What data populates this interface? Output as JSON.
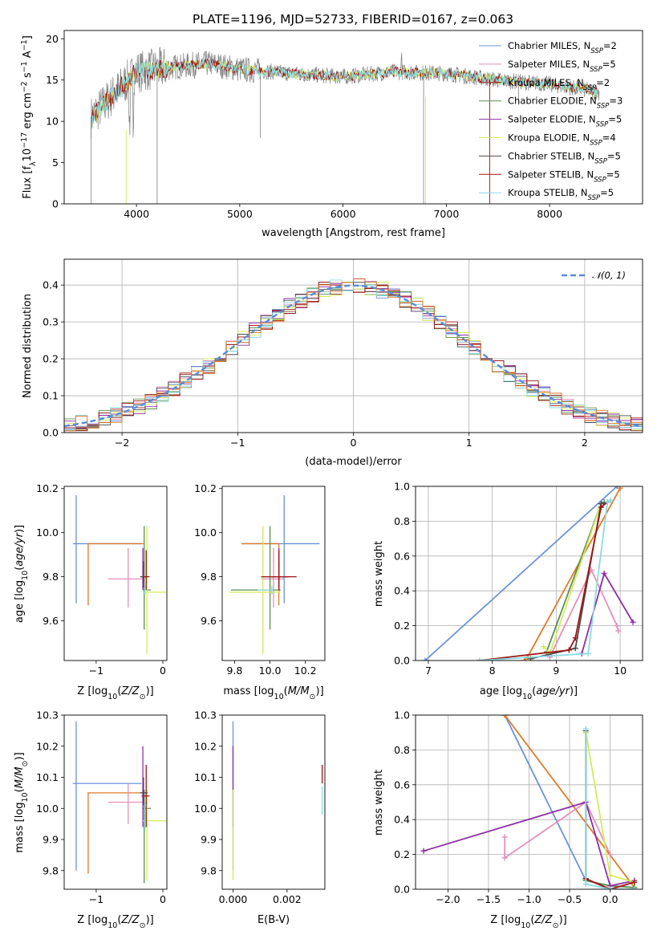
{
  "title": "PLATE=1196, MJD=52733, FIBERID=0167, z=0.063",
  "colors": {
    "Chabrier MILES": "#6b93d6",
    "Salpeter MILES": "#e58fba",
    "Kroupa MILES": "#8a1f12",
    "Chabrier ELODIE": "#5a8f4e",
    "Salpeter ELODIE": "#8e2ea5",
    "Kroupa ELODIE": "#d4ea5a",
    "Chabrier STELIB": "#4a4a4a",
    "Salpeter STELIB": "#a01515",
    "Kroupa STELIB": "#8adbe3",
    "data_gray": "#808080",
    "orange": "#df7a28",
    "gauss": "#5b8bd5"
  },
  "legend": [
    {
      "label": "Chabrier MILES, N",
      "sub": "SSP",
      "eq": "=2",
      "color": "#6b93d6"
    },
    {
      "label": "Salpeter MILES, N",
      "sub": "SSP",
      "eq": "=5",
      "color": "#e58fba"
    },
    {
      "label": "Kroupa MILES, N",
      "sub": "SSP",
      "eq": "=2",
      "color": "#8a1f12"
    },
    {
      "label": "Chabrier ELODIE, N",
      "sub": "SSP",
      "eq": "=3",
      "color": "#5a8f4e"
    },
    {
      "label": "Salpeter ELODIE, N",
      "sub": "SSP",
      "eq": "=5",
      "color": "#8e2ea5"
    },
    {
      "label": "Kroupa ELODIE, N",
      "sub": "SSP",
      "eq": "=4",
      "color": "#d4ea5a"
    },
    {
      "label": "Chabrier STELIB, N",
      "sub": "SSP",
      "eq": "=5",
      "color": "#4a4a4a"
    },
    {
      "label": "Salpeter STELIB, N",
      "sub": "SSP",
      "eq": "=5",
      "color": "#a01515"
    },
    {
      "label": "Kroupa STELIB, N",
      "sub": "SSP",
      "eq": "=5",
      "color": "#8adbe3"
    }
  ],
  "chart_data": [
    {
      "type": "line",
      "title": "PLATE=1196, MJD=52733, FIBERID=0167, z=0.063",
      "xlabel": "wavelength [Angstrom, rest frame]",
      "ylabel": "Flux [fλ10⁻¹⁷ erg cm⁻² s⁻¹ A⁻¹]",
      "xlim": [
        3300,
        8900
      ],
      "ylim": [
        0,
        21
      ],
      "xticks": [
        "4000",
        "5000",
        "6000",
        "7000",
        "8000"
      ],
      "yticks": [
        "0",
        "5",
        "10",
        "15",
        "20"
      ],
      "continuum": {
        "x": [
          3560,
          3800,
          4000,
          4300,
          4700,
          5000,
          5500,
          6000,
          6500,
          7000,
          7500,
          8000,
          8500
        ],
        "y": [
          10.5,
          13.5,
          16.0,
          16.5,
          17.0,
          16.3,
          15.8,
          15.4,
          16.0,
          15.8,
          15.0,
          14.5,
          13.5
        ]
      },
      "grid": false,
      "legend": "upper-right"
    },
    {
      "type": "bar",
      "subtype": "step-histogram",
      "xlabel": "(data-model)/error",
      "ylabel": "Normed distribution",
      "xlim": [
        -2.5,
        2.5
      ],
      "ylim": [
        0,
        0.47
      ],
      "xticks": [
        "−2",
        "−1",
        "0",
        "1",
        "2"
      ],
      "yticks": [
        "0.0",
        "0.1",
        "0.2",
        "0.3",
        "0.4"
      ],
      "legend_label": "𝒩(0, 1)",
      "grid": true,
      "legend": "upper-right"
    },
    {
      "type": "scatter",
      "subtype": "errorbar",
      "xlabel": "Z [log10(Z/Z⊙)]",
      "ylabel": "age [log10(age/yr)]",
      "xlim": [
        -1.48,
        0.06
      ],
      "ylim": [
        9.42,
        10.21
      ],
      "xticks": [
        "−1",
        "0"
      ],
      "yticks": [
        "9.6",
        "9.8",
        "10.0",
        "10.2"
      ],
      "points": [
        {
          "x": -1.3,
          "y": 9.95,
          "xerr": [
            0.05,
            0.98
          ],
          "yerr": [
            0.27,
            0.22
          ],
          "color": "#6b93d6"
        },
        {
          "x": -1.12,
          "y": 9.95,
          "xerr": [
            0.01,
            0.83
          ],
          "yerr": [
            0.28,
            0.0
          ],
          "color": "#df7a28"
        },
        {
          "x": -0.52,
          "y": 9.79,
          "xerr": [
            0.3,
            0.22
          ],
          "yerr": [
            0.13,
            0.14
          ],
          "color": "#e58fba"
        },
        {
          "x": -0.28,
          "y": 9.74,
          "xerr": [
            0.02,
            0.1
          ],
          "yerr": [
            0.18,
            0.29
          ],
          "color": "#5a8f4e"
        },
        {
          "x": -0.3,
          "y": 9.8,
          "xerr": [
            0.02,
            0.03
          ],
          "yerr": [
            0.06,
            0.13
          ],
          "color": "#8e2ea5"
        },
        {
          "x": -0.24,
          "y": 9.73,
          "xerr": [
            0.06,
            0.3
          ],
          "yerr": [
            0.28,
            0.3
          ],
          "color": "#d4ea5a"
        },
        {
          "x": -0.29,
          "y": 9.8,
          "xerr": [
            0.05,
            0.06
          ],
          "yerr": [
            0.05,
            0.07
          ],
          "color": "#4a4a4a"
        },
        {
          "x": -0.25,
          "y": 9.8,
          "xerr": [
            0.04,
            0.05
          ],
          "yerr": [
            0.06,
            0.12
          ],
          "color": "#a01515"
        },
        {
          "x": -0.27,
          "y": 9.74,
          "xerr": [
            0.01,
            0.02
          ],
          "yerr": [
            0.02,
            0.02
          ],
          "color": "#8adbe3"
        }
      ]
    },
    {
      "type": "scatter",
      "subtype": "errorbar",
      "xlabel": "mass [log10(M/M⊙)]",
      "xlim": [
        9.73,
        10.31
      ],
      "ylim": [
        9.42,
        10.21
      ],
      "xticks": [
        "9.8",
        "10.0",
        "10.2"
      ],
      "yticks": [
        "9.6",
        "9.8",
        "10.0",
        "10.2"
      ],
      "points": [
        {
          "x": 10.08,
          "y": 9.95,
          "xerr": [
            0.24,
            0.2
          ],
          "yerr": [
            0.27,
            0.22
          ],
          "color": "#6b93d6"
        },
        {
          "x": 10.05,
          "y": 9.95,
          "xerr": [
            0.21,
            0.0
          ],
          "yerr": [
            0.28,
            0.0
          ],
          "color": "#df7a28"
        },
        {
          "x": 10.02,
          "y": 9.79,
          "xerr": [
            0.07,
            0.06
          ],
          "yerr": [
            0.13,
            0.14
          ],
          "color": "#e58fba"
        },
        {
          "x": 10.0,
          "y": 9.74,
          "xerr": [
            0.22,
            0.06
          ],
          "yerr": [
            0.18,
            0.29
          ],
          "color": "#5a8f4e"
        },
        {
          "x": 10.05,
          "y": 9.8,
          "xerr": [
            0.1,
            0.06
          ],
          "yerr": [
            0.06,
            0.13
          ],
          "color": "#8e2ea5"
        },
        {
          "x": 9.96,
          "y": 9.73,
          "xerr": [
            0.19,
            0.1
          ],
          "yerr": [
            0.28,
            0.3
          ],
          "color": "#d4ea5a"
        },
        {
          "x": 10.05,
          "y": 9.8,
          "xerr": [
            0.04,
            0.05
          ],
          "yerr": [
            0.05,
            0.07
          ],
          "color": "#4a4a4a"
        },
        {
          "x": 10.05,
          "y": 9.8,
          "xerr": [
            0.1,
            0.1
          ],
          "yerr": [
            0.06,
            0.12
          ],
          "color": "#a01515"
        },
        {
          "x": 10.01,
          "y": 9.74,
          "xerr": [
            0.08,
            0.01
          ],
          "yerr": [
            0.02,
            0.02
          ],
          "color": "#8adbe3"
        }
      ]
    },
    {
      "type": "line",
      "xlabel": "age [log10(age/yr)]",
      "ylabel": "mass weight",
      "xlim": [
        6.8,
        10.35
      ],
      "ylim": [
        0,
        1
      ],
      "xticks": [
        "7",
        "8",
        "9",
        "10"
      ],
      "yticks": [
        "0.0",
        "0.2",
        "0.4",
        "0.6",
        "0.8",
        "1.0"
      ],
      "grid": true,
      "series": [
        {
          "color": "#6b93d6",
          "x": [
            6.95,
            9.95
          ],
          "y": [
            0.0,
            1.0
          ]
        },
        {
          "color": "#df7a28",
          "x": [
            8.5,
            8.55,
            10.0
          ],
          "y": [
            0.0,
            0.02,
            0.99
          ]
        },
        {
          "color": "#e58fba",
          "x": [
            8.9,
            9.55,
            9.95,
            9.97
          ],
          "y": [
            0.02,
            0.52,
            0.2,
            0.17
          ]
        },
        {
          "color": "#5a8f4e",
          "x": [
            8.85,
            9.7,
            9.75
          ],
          "y": [
            0.05,
            0.9,
            0.91
          ]
        },
        {
          "color": "#8e2ea5",
          "x": [
            9.4,
            9.75,
            10.2
          ],
          "y": [
            0.04,
            0.5,
            0.22
          ]
        },
        {
          "color": "#d4ea5a",
          "x": [
            8.8,
            8.9,
            9.7,
            9.8
          ],
          "y": [
            0.08,
            0.04,
            0.9,
            0.91
          ]
        },
        {
          "color": "#4a4a4a",
          "x": [
            8.6,
            9.3,
            9.7,
            9.8
          ],
          "y": [
            0.01,
            0.07,
            0.9,
            0.91
          ]
        },
        {
          "color": "#a01515",
          "x": [
            7.8,
            9.2,
            9.3,
            9.7,
            9.8
          ],
          "y": [
            0.0,
            0.06,
            0.13,
            0.88,
            0.91
          ]
        },
        {
          "color": "#8adbe3",
          "x": [
            7.8,
            9.5,
            9.8,
            9.85
          ],
          "y": [
            0.0,
            0.04,
            0.91,
            0.92
          ]
        }
      ]
    },
    {
      "type": "scatter",
      "subtype": "errorbar",
      "xlabel": "Z [log10(Z/Z⊙)]",
      "ylabel": "mass [log10(M/M⊙)]",
      "xlim": [
        -1.48,
        0.06
      ],
      "ylim": [
        9.74,
        10.3
      ],
      "xticks": [
        "−1",
        "0"
      ],
      "yticks": [
        "9.8",
        "9.9",
        "10.0",
        "10.1",
        "10.2",
        "10.3"
      ],
      "points": [
        {
          "x": -1.3,
          "y": 10.08,
          "xerr": [
            0.05,
            0.98
          ],
          "yerr": [
            0.28,
            0.2
          ],
          "color": "#6b93d6"
        },
        {
          "x": -1.12,
          "y": 10.05,
          "xerr": [
            0.01,
            0.83
          ],
          "yerr": [
            0.26,
            0.0
          ],
          "color": "#df7a28"
        },
        {
          "x": -0.52,
          "y": 10.02,
          "xerr": [
            0.3,
            0.22
          ],
          "yerr": [
            0.07,
            0.06
          ],
          "color": "#e58fba"
        },
        {
          "x": -0.28,
          "y": 10.0,
          "xerr": [
            0.02,
            0.1
          ],
          "yerr": [
            0.24,
            0.06
          ],
          "color": "#5a8f4e"
        },
        {
          "x": -0.3,
          "y": 10.04,
          "xerr": [
            0.02,
            0.03
          ],
          "yerr": [
            0.1,
            0.16
          ],
          "color": "#8e2ea5"
        },
        {
          "x": -0.24,
          "y": 9.96,
          "xerr": [
            0.06,
            0.3
          ],
          "yerr": [
            0.19,
            0.1
          ],
          "color": "#d4ea5a"
        },
        {
          "x": -0.29,
          "y": 10.05,
          "xerr": [
            0.05,
            0.06
          ],
          "yerr": [
            0.04,
            0.05
          ],
          "color": "#4a4a4a"
        },
        {
          "x": -0.25,
          "y": 10.04,
          "xerr": [
            0.04,
            0.05
          ],
          "yerr": [
            0.1,
            0.1
          ],
          "color": "#a01515"
        },
        {
          "x": -0.27,
          "y": 10.01,
          "xerr": [
            0.01,
            0.02
          ],
          "yerr": [
            0.08,
            0.01
          ],
          "color": "#8adbe3"
        }
      ]
    },
    {
      "type": "scatter",
      "subtype": "errorbar",
      "xlabel": "E(B-V)",
      "xlim": [
        -0.0004,
        0.0034
      ],
      "ylim": [
        9.74,
        10.3
      ],
      "xticks": [
        "0.000",
        "0.002"
      ],
      "yticks": [
        "9.8",
        "9.9",
        "10.0",
        "10.1",
        "10.2",
        "10.3"
      ],
      "points": [
        {
          "x": 0.0,
          "y": 10.08,
          "yerr": [
            0.28,
            0.2
          ],
          "color": "#6b93d6"
        },
        {
          "x": 0.0,
          "y": 10.04,
          "yerr": [
            0.1,
            0.16
          ],
          "color": "#8e2ea5"
        },
        {
          "x": 0.0,
          "y": 9.96,
          "yerr": [
            0.19,
            0.1
          ],
          "color": "#d4ea5a"
        },
        {
          "x": 0.0033,
          "y": 10.1,
          "yerr": [
            0.02,
            0.04
          ],
          "color": "#a01515"
        },
        {
          "x": 0.0033,
          "y": 10.01,
          "yerr": [
            0.03,
            0.06
          ],
          "color": "#8adbe3"
        }
      ]
    },
    {
      "type": "line",
      "xlabel": "Z [log10(Z/Z⊙)]",
      "ylabel": "mass weight",
      "xlim": [
        -2.4,
        0.4
      ],
      "ylim": [
        0,
        1
      ],
      "xticks": [
        "−2.0",
        "−1.5",
        "−1.0",
        "−0.5",
        "0.0"
      ],
      "yticks": [
        "0.0",
        "0.2",
        "0.4",
        "0.6",
        "0.8",
        "1.0"
      ],
      "grid": true,
      "series": [
        {
          "color": "#6b93d6",
          "x": [
            -1.3,
            -0.3,
            0.0
          ],
          "y": [
            1.0,
            0.05,
            0.02
          ]
        },
        {
          "color": "#df7a28",
          "x": [
            -1.3,
            0.3
          ],
          "y": [
            1.0,
            0.01
          ]
        },
        {
          "color": "#e58fba",
          "x": [
            -1.3,
            -1.3,
            -0.3,
            0.0
          ],
          "y": [
            0.3,
            0.18,
            0.5,
            0.2
          ]
        },
        {
          "color": "#5a8f4e",
          "x": [
            -0.3,
            -0.3,
            0.0,
            0.3
          ],
          "y": [
            0.9,
            0.05,
            0.02,
            0.01
          ]
        },
        {
          "color": "#8e2ea5",
          "x": [
            -2.3,
            -0.3,
            0.0,
            0.3
          ],
          "y": [
            0.22,
            0.5,
            0.02,
            0.05
          ]
        },
        {
          "color": "#d4ea5a",
          "x": [
            -0.3,
            0.0,
            0.3
          ],
          "y": [
            0.9,
            0.08,
            0.04
          ]
        },
        {
          "color": "#4a4a4a",
          "x": [
            -0.3,
            -0.3,
            0.0,
            0.3
          ],
          "y": [
            0.91,
            0.06,
            0.0,
            0.0
          ]
        },
        {
          "color": "#a01515",
          "x": [
            -0.3,
            0.0,
            0.3
          ],
          "y": [
            0.06,
            0.0,
            0.04
          ]
        },
        {
          "color": "#8adbe3",
          "x": [
            -0.3,
            -0.3,
            0.0,
            0.3
          ],
          "y": [
            0.92,
            0.03,
            0.0,
            0.0
          ]
        }
      ]
    }
  ]
}
